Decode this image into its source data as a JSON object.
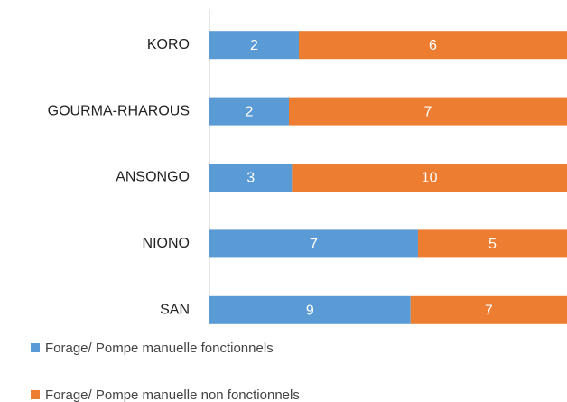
{
  "chart_data": {
    "type": "bar",
    "orientation": "horizontal",
    "stacking": "percent",
    "categories": [
      "KORO",
      "GOURMA-RHAROUS",
      "ANSONGO",
      "NIONO",
      "SAN"
    ],
    "series": [
      {
        "name": "Forage/ Pompe manuelle fonctionnels",
        "color": "#5b9bd5",
        "values": [
          2,
          2,
          3,
          7,
          9
        ]
      },
      {
        "name": "Forage/ Pompe manuelle non fonctionnels",
        "color": "#ed7d31",
        "values": [
          6,
          7,
          10,
          5,
          7
        ]
      }
    ],
    "legend": "bottom-left"
  }
}
